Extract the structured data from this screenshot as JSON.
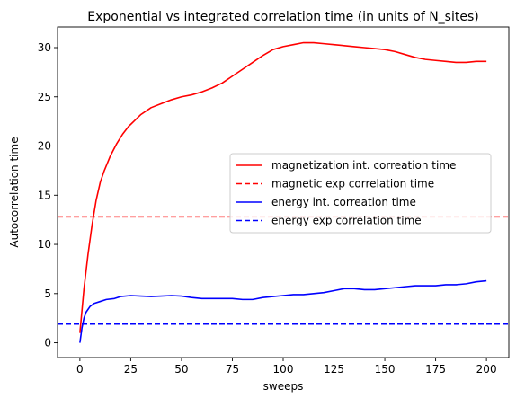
{
  "chart_data": {
    "type": "line",
    "title": "Exponential vs integrated correlation time (in units of N_sites)",
    "xlabel": "sweeps",
    "ylabel": "Autocorrelation time",
    "xlim": [
      -11,
      211
    ],
    "ylim": [
      -1.5,
      32.1
    ],
    "xticks": [
      0,
      25,
      50,
      75,
      100,
      125,
      150,
      175,
      200
    ],
    "yticks": [
      0,
      5,
      10,
      15,
      20,
      25,
      30
    ],
    "grid": false,
    "legend_position": "center-right",
    "series": [
      {
        "name": "magnetization int. correation time",
        "color": "#ff0000",
        "dash": "solid",
        "x": [
          0,
          2,
          4,
          6,
          8,
          10,
          12,
          15,
          18,
          21,
          24,
          27,
          30,
          35,
          40,
          45,
          50,
          55,
          60,
          65,
          70,
          75,
          80,
          85,
          90,
          95,
          100,
          105,
          110,
          115,
          120,
          125,
          130,
          135,
          140,
          145,
          150,
          155,
          160,
          165,
          170,
          175,
          180,
          185,
          190,
          195,
          200
        ],
        "y": [
          1.0,
          5.5,
          9.0,
          12.0,
          14.5,
          16.3,
          17.5,
          19.0,
          20.2,
          21.2,
          22.0,
          22.6,
          23.2,
          23.9,
          24.3,
          24.7,
          25.0,
          25.2,
          25.5,
          25.9,
          26.4,
          27.1,
          27.8,
          28.5,
          29.2,
          29.8,
          30.1,
          30.3,
          30.5,
          30.5,
          30.4,
          30.3,
          30.2,
          30.1,
          30.0,
          29.9,
          29.8,
          29.6,
          29.3,
          29.0,
          28.8,
          28.7,
          28.6,
          28.5,
          28.5,
          28.6,
          28.6
        ]
      },
      {
        "name": "magnetic exp correlation time",
        "color": "#ff0000",
        "dash": "dashed",
        "constant": 12.8
      },
      {
        "name": "energy int. correation time",
        "color": "#0000ff",
        "dash": "solid",
        "x": [
          0,
          1,
          2,
          3,
          5,
          7,
          10,
          13,
          17,
          20,
          25,
          30,
          35,
          40,
          45,
          50,
          55,
          60,
          65,
          70,
          75,
          80,
          85,
          90,
          95,
          100,
          105,
          110,
          115,
          120,
          125,
          130,
          135,
          140,
          145,
          150,
          155,
          160,
          165,
          170,
          175,
          180,
          185,
          190,
          195,
          200
        ],
        "y": [
          0.0,
          1.5,
          2.5,
          3.1,
          3.7,
          4.0,
          4.2,
          4.4,
          4.5,
          4.7,
          4.8,
          4.75,
          4.7,
          4.75,
          4.8,
          4.75,
          4.6,
          4.5,
          4.5,
          4.5,
          4.5,
          4.4,
          4.4,
          4.6,
          4.7,
          4.8,
          4.9,
          4.9,
          5.0,
          5.1,
          5.3,
          5.5,
          5.5,
          5.4,
          5.4,
          5.5,
          5.6,
          5.7,
          5.8,
          5.8,
          5.8,
          5.9,
          5.9,
          6.0,
          6.2,
          6.3
        ]
      },
      {
        "name": "energy exp correlation time",
        "color": "#0000ff",
        "dash": "dashed",
        "constant": 1.9
      }
    ]
  }
}
